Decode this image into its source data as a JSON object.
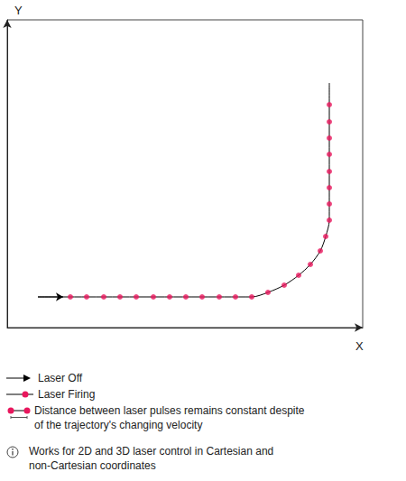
{
  "chart_data": {
    "type": "line",
    "x_label": "X",
    "y_label": "Y",
    "xlim": [
      0,
      394
    ],
    "ylim": [
      0,
      341
    ],
    "tick_labels": false,
    "grid": false,
    "path": {
      "color": "#000000",
      "line_style": "solid",
      "x": [
        34,
        271,
        289,
        307,
        323,
        336,
        347,
        353,
        357,
        357
      ],
      "values": [
        34,
        34,
        39,
        47,
        58,
        70,
        85,
        101,
        119,
        271
      ]
    },
    "series": [
      {
        "name": "Laser Off",
        "color": "#000000",
        "marker": "arrow",
        "line_style": "solid",
        "x": [
          34,
          62
        ],
        "values": [
          34,
          34
        ]
      },
      {
        "name": "Laser Firing",
        "color": "#e8175d",
        "marker": "circle",
        "x": [
          70,
          88,
          107,
          125,
          143,
          162,
          180,
          198,
          216,
          235,
          253,
          271,
          289,
          307,
          323,
          336,
          347,
          353,
          357,
          357,
          357,
          357,
          357,
          357,
          357,
          357
        ],
        "values": [
          34,
          34,
          34,
          34,
          34,
          34,
          34,
          34,
          34,
          34,
          34,
          34,
          39,
          47,
          58,
          70,
          85,
          101,
          119,
          137,
          155,
          173,
          192,
          210,
          228,
          247
        ]
      }
    ],
    "annotations": [
      "Distance between laser pulses remains constant despite of the trajectory's changing velocity",
      "Works for 2D and 3D laser control in Cartesian and non-Cartesian coordinates"
    ]
  }
}
